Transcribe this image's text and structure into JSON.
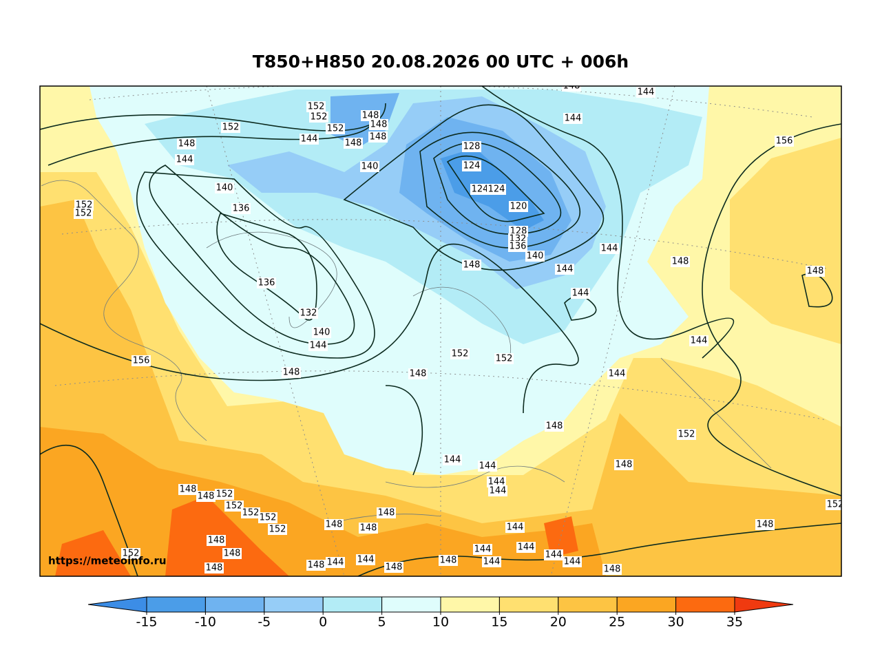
{
  "title": "T850+H850 20.08.2026 00 UTC + 006h",
  "watermark": "https://meteoinfo.ru",
  "colorbar": {
    "bounds": [
      -15,
      -10,
      -5,
      0,
      5,
      10,
      15,
      20,
      25,
      30,
      35
    ],
    "colors": [
      "#3c8de6",
      "#4b9de8",
      "#6fb3f0",
      "#96cdf7",
      "#b3ecf6",
      "#dffdfc",
      "#fff7a8",
      "#ffe070",
      "#fdc443",
      "#fba622",
      "#fc6a10",
      "#f03a10"
    ],
    "ticks": [
      -15,
      -10,
      -5,
      0,
      5,
      10,
      15,
      20,
      25,
      30,
      35
    ]
  },
  "contour_labels": [
    152,
    148,
    144,
    140,
    136,
    152,
    152,
    136,
    132,
    140,
    144,
    148,
    156,
    152,
    152,
    152,
    144,
    148,
    148,
    148,
    148,
    140,
    128,
    124,
    124,
    124,
    120,
    128,
    132,
    136,
    140,
    148,
    144,
    144,
    144,
    144,
    144,
    148,
    156,
    148,
    148,
    144,
    144,
    152,
    152,
    148,
    148,
    152,
    148,
    144,
    144,
    144,
    144,
    148,
    148,
    152,
    152,
    152,
    152,
    152,
    148,
    148,
    148,
    148,
    148,
    148,
    152,
    148,
    144,
    144,
    148,
    148,
    144,
    144,
    144,
    144,
    144,
    144,
    148,
    148,
    152
  ]
}
